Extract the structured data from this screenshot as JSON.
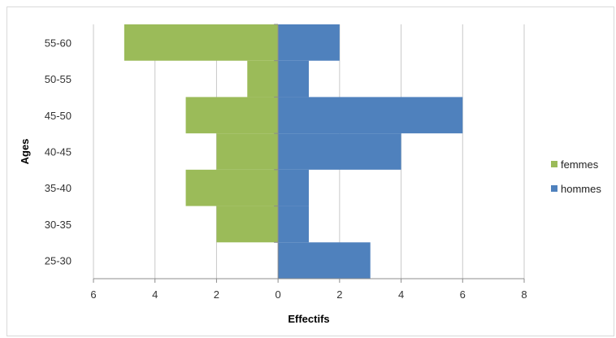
{
  "chart_data": {
    "type": "bar",
    "orientation": "horizontal",
    "categories": [
      "55-60",
      "50-55",
      "45-50",
      "40-45",
      "35-40",
      "30-35",
      "25-30"
    ],
    "series": [
      {
        "name": "femmes",
        "values": [
          5,
          1,
          3,
          2,
          3,
          2,
          0
        ],
        "direction": "left",
        "color": "#9bbb59"
      },
      {
        "name": "hommes",
        "values": [
          2,
          1,
          6,
          4,
          1,
          1,
          3
        ],
        "direction": "right",
        "color": "#4f81bd"
      }
    ],
    "xlabel": "Effectifs",
    "ylabel": "Ages",
    "xlim": [
      -6,
      8
    ],
    "x_ticks": [
      -6,
      -4,
      -2,
      0,
      2,
      4,
      6,
      8
    ],
    "x_tick_labels": [
      "6",
      "4",
      "2",
      "0",
      "2",
      "4",
      "6",
      "8"
    ],
    "grid": "vertical",
    "legend_position": "right",
    "grid_color": "#c8c8c8",
    "axis_color": "#8c8c8c"
  }
}
